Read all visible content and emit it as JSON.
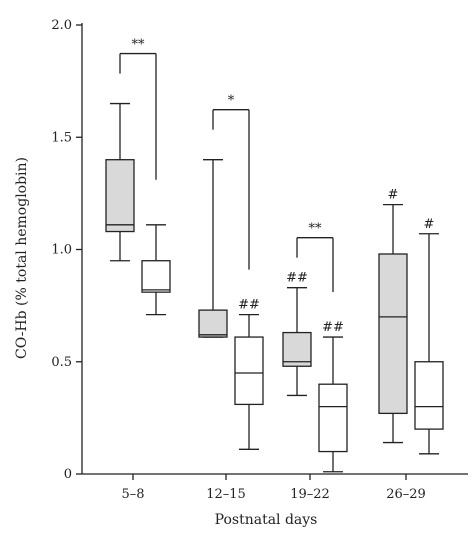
{
  "chart_data": {
    "type": "boxplot",
    "xlabel": "Postnatal days",
    "ylabel": "CO-Hb (% total hemoglobin)",
    "ylim": [
      0,
      2.0
    ],
    "yticks": [
      {
        "value": 0,
        "label": "0"
      },
      {
        "value": 0.5,
        "label": "0.5"
      },
      {
        "value": 1.0,
        "label": "1.0"
      },
      {
        "value": 1.5,
        "label": "1.5"
      },
      {
        "value": 2.0,
        "label": "2.0"
      }
    ],
    "categories": [
      "5–8",
      "12–15",
      "19–22",
      "26–29"
    ],
    "colors": {
      "filled_box": "#d9d9d9",
      "open_box": "#ffffff",
      "stroke": "#222222"
    },
    "series": [
      {
        "fill": "#d9d9d9",
        "boxes": [
          {
            "min": 0.95,
            "q1": 1.08,
            "median": 1.11,
            "q3": 1.4,
            "max": 1.65
          },
          {
            "min": 0.61,
            "q1": 0.61,
            "median": 0.62,
            "q3": 0.73,
            "max": 1.4
          },
          {
            "min": 0.35,
            "q1": 0.48,
            "median": 0.5,
            "q3": 0.63,
            "max": 0.83
          },
          {
            "min": 0.14,
            "q1": 0.27,
            "median": 0.7,
            "q3": 0.98,
            "max": 1.2
          }
        ]
      },
      {
        "fill": "#ffffff",
        "boxes": [
          {
            "min": 0.71,
            "q1": 0.81,
            "median": 0.82,
            "q3": 0.95,
            "max": 1.11
          },
          {
            "min": 0.11,
            "q1": 0.31,
            "median": 0.45,
            "q3": 0.61,
            "max": 0.71
          },
          {
            "min": 0.01,
            "q1": 0.1,
            "median": 0.3,
            "q3": 0.4,
            "max": 0.61
          },
          {
            "min": 0.09,
            "q1": 0.2,
            "median": 0.3,
            "q3": 0.5,
            "max": 1.07
          }
        ]
      }
    ],
    "significance_brackets": [
      {
        "category": 0,
        "label": "**"
      },
      {
        "category": 1,
        "label": "*"
      },
      {
        "category": 2,
        "label": "**"
      }
    ],
    "box_annotations": [
      {
        "category": 1,
        "series": 1,
        "label": "##"
      },
      {
        "category": 2,
        "series": 0,
        "label": "##"
      },
      {
        "category": 2,
        "series": 1,
        "label": "##"
      },
      {
        "category": 3,
        "series": 0,
        "label": "#"
      },
      {
        "category": 3,
        "series": 1,
        "label": "#"
      }
    ]
  }
}
